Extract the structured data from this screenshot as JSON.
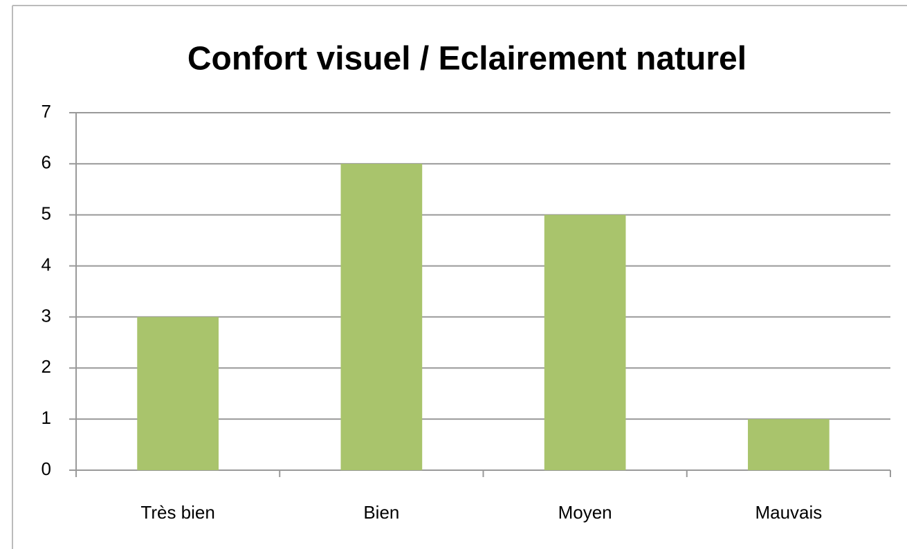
{
  "chart_data": {
    "type": "bar",
    "title": "Confort visuel / Eclairement naturel",
    "categories": [
      "Très bien",
      "Bien",
      "Moyen",
      "Mauvais"
    ],
    "values": [
      3,
      6,
      5,
      1
    ],
    "color": "#a9c46c",
    "ylim": [
      0,
      7
    ],
    "yticks": [
      0,
      1,
      2,
      3,
      4,
      5,
      6,
      7
    ],
    "grid": true
  }
}
